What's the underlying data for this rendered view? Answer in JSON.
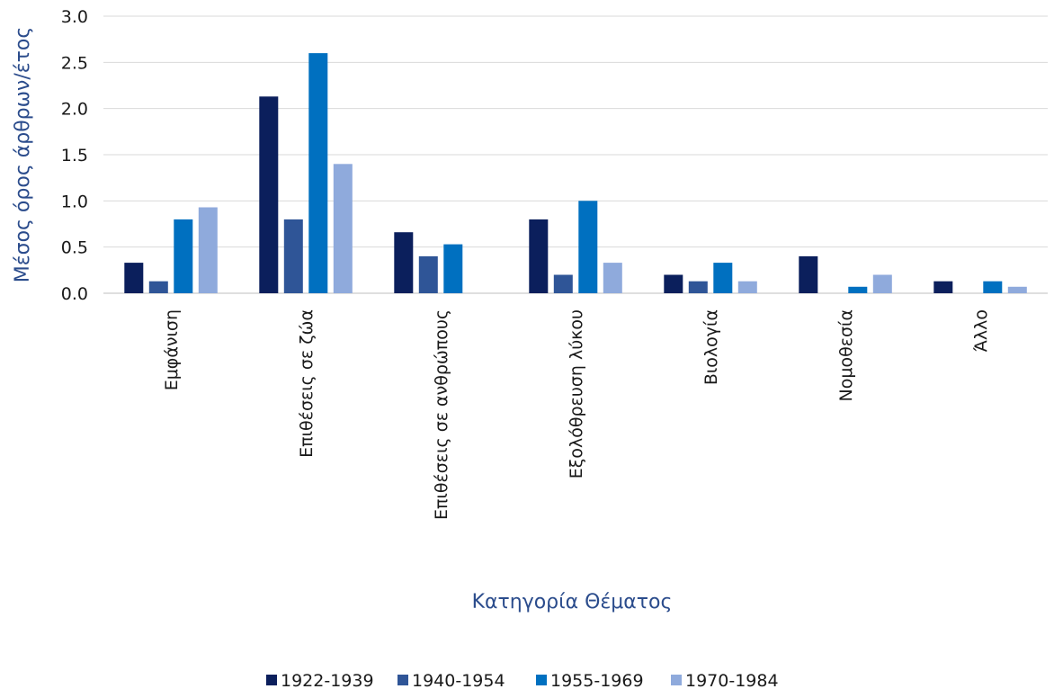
{
  "chart_data": {
    "type": "bar",
    "xlabel": "Κατηγορία Θέματος",
    "ylabel": "Μέσος όρος άρθρων/έτος",
    "ylim": [
      0,
      3.0
    ],
    "yticks": [
      "0.0",
      "0.5",
      "1.0",
      "1.5",
      "2.0",
      "2.5",
      "3.0"
    ],
    "grid": true,
    "legend_position": "bottom",
    "categories": [
      "Εμφάνιση",
      "Επιθέσεις σε ζώα",
      "Επιθέσεις σε ανθρώπους",
      "Εξολόθρευση λύκου",
      "Βιολογία",
      "Νομοθεσία",
      "Άλλο"
    ],
    "series": [
      {
        "name": "1922-1939",
        "color": "#0b1f5c",
        "values": [
          0.33,
          2.13,
          0.66,
          0.8,
          0.2,
          0.4,
          0.13
        ]
      },
      {
        "name": "1940-1954",
        "color": "#2f5597",
        "values": [
          0.13,
          0.8,
          0.4,
          0.2,
          0.13,
          0.0,
          0.0
        ]
      },
      {
        "name": "1955-1969",
        "color": "#0070c0",
        "values": [
          0.8,
          2.6,
          0.53,
          1.0,
          0.33,
          0.07,
          0.13
        ]
      },
      {
        "name": "1970-1984",
        "color": "#8faadc",
        "values": [
          0.93,
          1.4,
          0.0,
          0.33,
          0.13,
          0.2,
          0.07
        ]
      }
    ]
  }
}
